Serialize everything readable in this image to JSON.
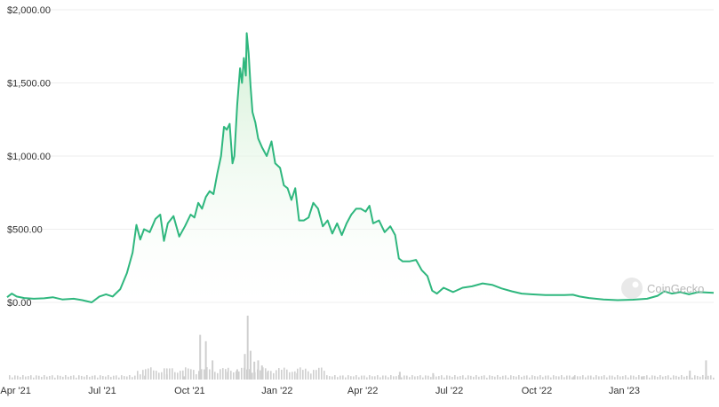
{
  "chart_data": {
    "type": "area",
    "source_label": "CoinGecko",
    "colors": {
      "line": "#2fb77e",
      "fill_top": "#cdeecf",
      "fill_bottom": "#ffffff",
      "grid": "#eeeeee",
      "volume": "#cfcfcf"
    },
    "y_ticks": [
      {
        "value": 0,
        "label": "$0.00"
      },
      {
        "value": 500,
        "label": "$500.00"
      },
      {
        "value": 1000,
        "label": "$1,000.00"
      },
      {
        "value": 1500,
        "label": "$1,500.00"
      },
      {
        "value": 2000,
        "label": "$2,000.00"
      }
    ],
    "ylim": [
      0,
      2000
    ],
    "x_ticks": [
      {
        "date": "2021-04-01",
        "label": "Apr '21"
      },
      {
        "date": "2021-07-01",
        "label": "Jul '21"
      },
      {
        "date": "2021-10-01",
        "label": "Oct '21"
      },
      {
        "date": "2022-01-01",
        "label": "Jan '22"
      },
      {
        "date": "2022-04-01",
        "label": "Apr '22"
      },
      {
        "date": "2022-07-01",
        "label": "Jul '22"
      },
      {
        "date": "2022-10-01",
        "label": "Oct '22"
      },
      {
        "date": "2023-01-01",
        "label": "Jan '23"
      }
    ],
    "xlim": [
      "2021-03-23",
      "2023-04-05"
    ],
    "grid": true,
    "series": [
      {
        "points": [
          [
            "2021-03-23",
            35
          ],
          [
            "2021-03-28",
            60
          ],
          [
            "2021-04-02",
            40
          ],
          [
            "2021-04-10",
            30
          ],
          [
            "2021-04-20",
            25
          ],
          [
            "2021-05-01",
            28
          ],
          [
            "2021-05-10",
            35
          ],
          [
            "2021-05-20",
            20
          ],
          [
            "2021-06-01",
            25
          ],
          [
            "2021-06-10",
            15
          ],
          [
            "2021-06-20",
            0
          ],
          [
            "2021-06-28",
            40
          ],
          [
            "2021-07-05",
            55
          ],
          [
            "2021-07-12",
            40
          ],
          [
            "2021-07-20",
            90
          ],
          [
            "2021-07-27",
            200
          ],
          [
            "2021-08-02",
            340
          ],
          [
            "2021-08-06",
            530
          ],
          [
            "2021-08-10",
            430
          ],
          [
            "2021-08-14",
            500
          ],
          [
            "2021-08-20",
            480
          ],
          [
            "2021-08-26",
            570
          ],
          [
            "2021-08-31",
            600
          ],
          [
            "2021-09-04",
            420
          ],
          [
            "2021-09-08",
            540
          ],
          [
            "2021-09-14",
            590
          ],
          [
            "2021-09-20",
            450
          ],
          [
            "2021-09-26",
            520
          ],
          [
            "2021-10-02",
            600
          ],
          [
            "2021-10-06",
            580
          ],
          [
            "2021-10-10",
            680
          ],
          [
            "2021-10-14",
            640
          ],
          [
            "2021-10-18",
            720
          ],
          [
            "2021-10-22",
            760
          ],
          [
            "2021-10-26",
            740
          ],
          [
            "2021-10-30",
            880
          ],
          [
            "2021-11-03",
            1000
          ],
          [
            "2021-11-06",
            1200
          ],
          [
            "2021-11-09",
            1180
          ],
          [
            "2021-11-12",
            1220
          ],
          [
            "2021-11-15",
            950
          ],
          [
            "2021-11-17",
            1000
          ],
          [
            "2021-11-20",
            1350
          ],
          [
            "2021-11-23",
            1600
          ],
          [
            "2021-11-25",
            1500
          ],
          [
            "2021-11-27",
            1670
          ],
          [
            "2021-11-29",
            1550
          ],
          [
            "2021-11-30",
            1840
          ],
          [
            "2021-12-02",
            1700
          ],
          [
            "2021-12-04",
            1480
          ],
          [
            "2021-12-06",
            1300
          ],
          [
            "2021-12-09",
            1230
          ],
          [
            "2021-12-12",
            1120
          ],
          [
            "2021-12-16",
            1060
          ],
          [
            "2021-12-21",
            1000
          ],
          [
            "2021-12-26",
            1100
          ],
          [
            "2021-12-30",
            950
          ],
          [
            "2022-01-04",
            920
          ],
          [
            "2022-01-08",
            800
          ],
          [
            "2022-01-12",
            780
          ],
          [
            "2022-01-16",
            700
          ],
          [
            "2022-01-20",
            780
          ],
          [
            "2022-01-24",
            560
          ],
          [
            "2022-01-29",
            560
          ],
          [
            "2022-02-03",
            580
          ],
          [
            "2022-02-08",
            680
          ],
          [
            "2022-02-13",
            640
          ],
          [
            "2022-02-18",
            520
          ],
          [
            "2022-02-23",
            560
          ],
          [
            "2022-02-28",
            470
          ],
          [
            "2022-03-05",
            540
          ],
          [
            "2022-03-10",
            460
          ],
          [
            "2022-03-15",
            540
          ],
          [
            "2022-03-20",
            600
          ],
          [
            "2022-03-25",
            640
          ],
          [
            "2022-03-30",
            640
          ],
          [
            "2022-04-04",
            620
          ],
          [
            "2022-04-08",
            660
          ],
          [
            "2022-04-12",
            540
          ],
          [
            "2022-04-18",
            560
          ],
          [
            "2022-04-24",
            480
          ],
          [
            "2022-04-30",
            520
          ],
          [
            "2022-05-05",
            460
          ],
          [
            "2022-05-09",
            300
          ],
          [
            "2022-05-13",
            280
          ],
          [
            "2022-05-20",
            280
          ],
          [
            "2022-05-27",
            290
          ],
          [
            "2022-06-02",
            220
          ],
          [
            "2022-06-08",
            180
          ],
          [
            "2022-06-13",
            80
          ],
          [
            "2022-06-18",
            60
          ],
          [
            "2022-06-25",
            100
          ],
          [
            "2022-07-05",
            70
          ],
          [
            "2022-07-15",
            100
          ],
          [
            "2022-07-25",
            110
          ],
          [
            "2022-08-05",
            130
          ],
          [
            "2022-08-15",
            120
          ],
          [
            "2022-08-25",
            95
          ],
          [
            "2022-09-05",
            75
          ],
          [
            "2022-09-15",
            60
          ],
          [
            "2022-09-25",
            55
          ],
          [
            "2022-10-10",
            50
          ],
          [
            "2022-10-30",
            50
          ],
          [
            "2022-11-08",
            52
          ],
          [
            "2022-11-15",
            40
          ],
          [
            "2022-11-25",
            30
          ],
          [
            "2022-12-10",
            20
          ],
          [
            "2022-12-25",
            15
          ],
          [
            "2023-01-10",
            18
          ],
          [
            "2023-01-25",
            25
          ],
          [
            "2023-02-05",
            45
          ],
          [
            "2023-02-12",
            75
          ],
          [
            "2023-02-20",
            60
          ],
          [
            "2023-03-01",
            70
          ],
          [
            "2023-03-10",
            55
          ],
          [
            "2023-03-20",
            70
          ],
          [
            "2023-04-05",
            65
          ]
        ]
      }
    ],
    "volume": {
      "points": [
        [
          "2021-08-15",
          0.06
        ],
        [
          "2021-09-07",
          0.08
        ],
        [
          "2021-09-25",
          0.05
        ],
        [
          "2021-10-12",
          0.7
        ],
        [
          "2021-10-18",
          0.6
        ],
        [
          "2021-10-25",
          0.3
        ],
        [
          "2021-11-10",
          0.12
        ],
        [
          "2021-11-20",
          0.16
        ],
        [
          "2021-11-28",
          0.4
        ],
        [
          "2021-12-01",
          1.0
        ],
        [
          "2021-12-04",
          0.45
        ],
        [
          "2021-12-08",
          0.28
        ],
        [
          "2021-12-12",
          0.3
        ],
        [
          "2021-12-16",
          0.22
        ],
        [
          "2021-12-22",
          0.12
        ],
        [
          "2022-01-22",
          0.1
        ],
        [
          "2022-05-10",
          0.12
        ],
        [
          "2022-06-14",
          0.1
        ],
        [
          "2022-11-09",
          0.05
        ],
        [
          "2023-01-20",
          0.05
        ],
        [
          "2023-03-11",
          0.14
        ],
        [
          "2023-03-28",
          0.3
        ]
      ]
    }
  }
}
